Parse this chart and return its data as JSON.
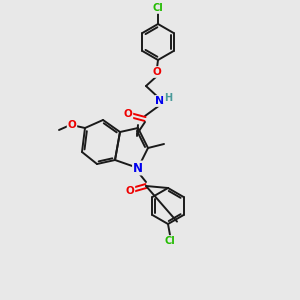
{
  "bg_color": "#e8e8e8",
  "bond_color": "#1a1a1a",
  "atom_colors": {
    "N": "#0000ee",
    "O": "#ee0000",
    "Cl": "#22bb00",
    "C": "#1a1a1a",
    "H": "#4a9a9a"
  },
  "figsize": [
    3.0,
    3.0
  ],
  "dpi": 100
}
